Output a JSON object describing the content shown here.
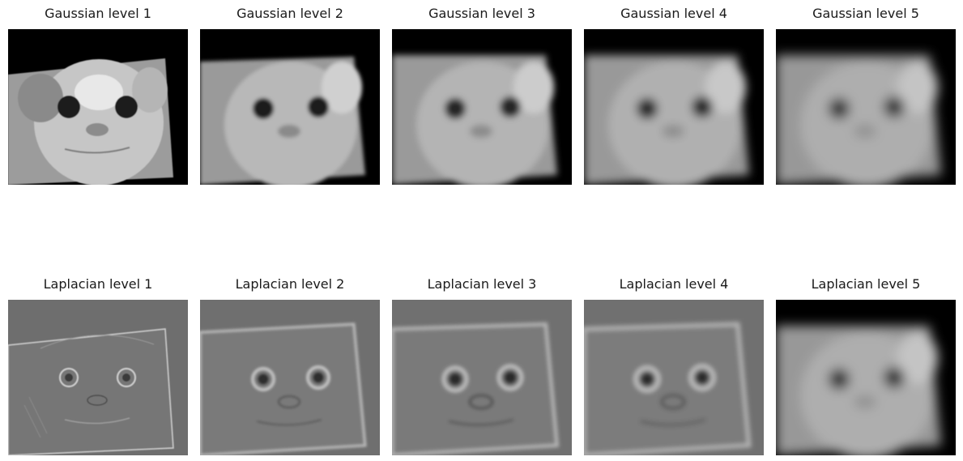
{
  "gaussian": {
    "titles": [
      "Gaussian level 1",
      "Gaussian level 2",
      "Gaussian level 3",
      "Gaussian level 4",
      "Gaussian level 5"
    ]
  },
  "laplacian": {
    "titles": [
      "Laplacian level 1",
      "Laplacian level 2",
      "Laplacian level 3",
      "Laplacian level 4",
      "Laplacian level 5"
    ]
  }
}
